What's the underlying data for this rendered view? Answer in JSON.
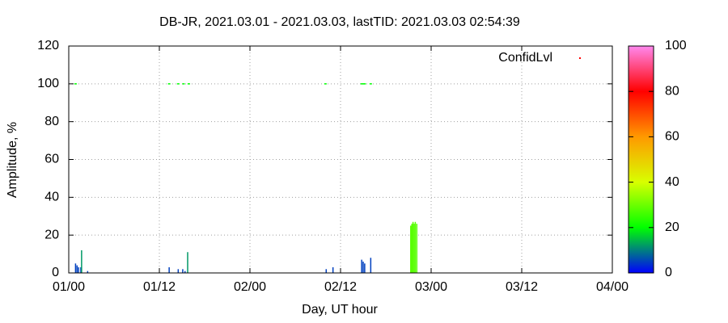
{
  "chart_data": {
    "type": "impulse",
    "title": "DB-JR, 2021.03.01 - 2021.03.03, lastTID: 2021.03.03 02:54:39",
    "xlabel": "Day, UT hour",
    "ylabel": "Amplitude, %",
    "xlim": [
      0,
      72
    ],
    "xticks": [
      {
        "value": 0,
        "label": "01/00"
      },
      {
        "value": 12,
        "label": "01/12"
      },
      {
        "value": 24,
        "label": "02/00"
      },
      {
        "value": 36,
        "label": "02/12"
      },
      {
        "value": 48,
        "label": "03/00"
      },
      {
        "value": 60,
        "label": "03/12"
      },
      {
        "value": 72,
        "label": "04/00"
      }
    ],
    "ylim": [
      0,
      120
    ],
    "yticks": [
      0,
      20,
      40,
      60,
      80,
      100,
      120
    ],
    "cblim": [
      0,
      100
    ],
    "cbticks": [
      0,
      20,
      40,
      60,
      80,
      100
    ],
    "palette": [
      "#0000ff",
      "#00ff00",
      "#d8ff00",
      "#ff9900",
      "#ff0000",
      "#ff88ee"
    ],
    "grid": true,
    "legend": "top-right",
    "impulses": {
      "x": [
        0.9,
        1.1,
        1.3,
        1.6,
        1.7,
        2.5,
        13.3,
        14.5,
        15.1,
        15.4,
        15.75,
        34.1,
        35.0,
        38.8,
        39.0,
        39.2,
        40.0,
        45.3,
        45.45,
        45.6,
        45.75,
        45.9,
        46.1
      ],
      "values": [
        5,
        4,
        3,
        3,
        12,
        1,
        3,
        2,
        2,
        1,
        11,
        2,
        3,
        7,
        6,
        5,
        8,
        25,
        26,
        27,
        26,
        27,
        26
      ],
      "cb": [
        5,
        5,
        5,
        5,
        12,
        5,
        5,
        5,
        5,
        5,
        12,
        5,
        5,
        5,
        5,
        5,
        5,
        28,
        28,
        28,
        28,
        28,
        28
      ]
    },
    "series": [
      {
        "name": "ConfidLvl",
        "color": "#ff0000",
        "x": [
          0.9,
          13.3,
          14.5,
          15.2,
          15.9,
          34.0,
          38.8,
          39.0,
          39.2,
          40.0
        ],
        "values": [
          100,
          100,
          100,
          100,
          100,
          100,
          100,
          100,
          100,
          100
        ],
        "cb": [
          20,
          20,
          20,
          20,
          20,
          20,
          20,
          20,
          20,
          20
        ]
      }
    ]
  }
}
